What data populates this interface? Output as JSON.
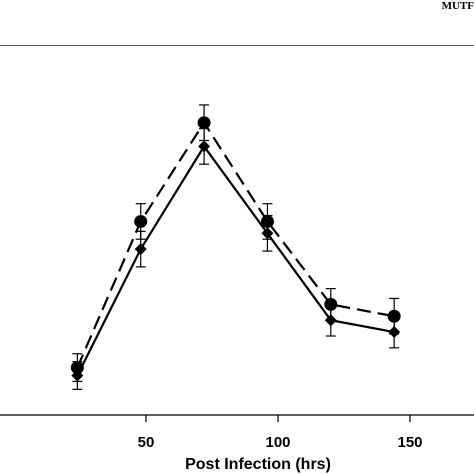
{
  "header": {
    "text": "MUTF"
  },
  "chart_data": {
    "type": "line",
    "title": "",
    "xlabel": "Post Infection (hrs)",
    "ylabel": "",
    "xlim": [
      0,
      175
    ],
    "ylim": [
      0,
      1
    ],
    "xticks": [
      50,
      100,
      150
    ],
    "grid": false,
    "x": [
      24,
      48,
      72,
      96,
      120,
      144
    ],
    "series": [
      {
        "marker": "circle",
        "linestyle": "dashed",
        "values": [
          0.12,
          0.49,
          0.74,
          0.49,
          0.28,
          0.25
        ],
        "errors": [
          0.035,
          0.045,
          0.045,
          0.045,
          0.04,
          0.045
        ]
      },
      {
        "marker": "diamond",
        "linestyle": "solid",
        "values": [
          0.1,
          0.42,
          0.68,
          0.46,
          0.24,
          0.21
        ],
        "errors": [
          0.035,
          0.045,
          0.045,
          0.045,
          0.04,
          0.04
        ]
      }
    ],
    "color": "#000000"
  }
}
